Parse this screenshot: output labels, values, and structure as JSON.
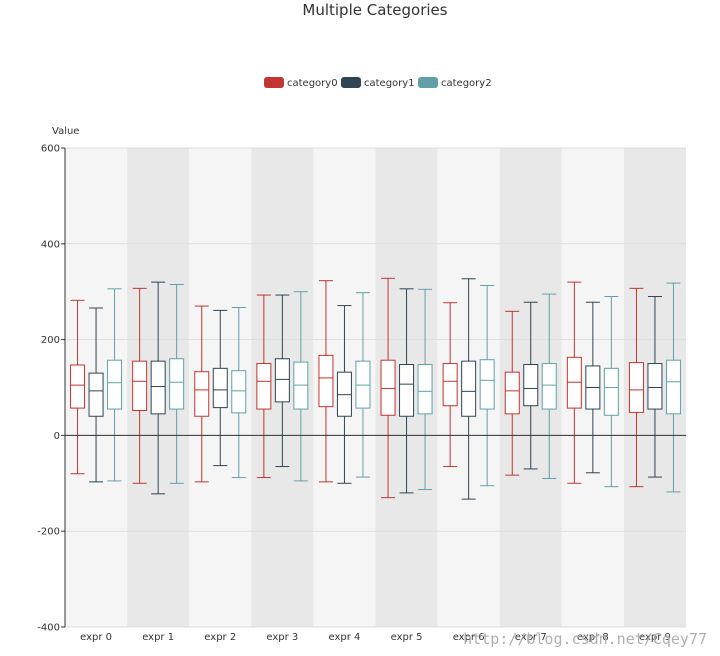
{
  "chart_data": {
    "type": "boxplot",
    "title": "Multiple Categories",
    "ylabel": "Value",
    "xlabel": "",
    "ylim": [
      -400,
      600
    ],
    "yticks": [
      -400,
      -200,
      0,
      200,
      400,
      600
    ],
    "categories": [
      "expr 0",
      "expr 1",
      "expr 2",
      "expr 3",
      "expr 4",
      "expr 5",
      "expr 6",
      "expr 7",
      "expr 8",
      "expr 9"
    ],
    "legend_position": "top-center",
    "grid": true,
    "alternating_band_colors": [
      "#f5f5f5",
      "#e8e8e8"
    ],
    "series": [
      {
        "name": "category0",
        "color": "#c23531",
        "boxes": [
          [
            -80,
            57,
            105,
            147,
            282
          ],
          [
            -100,
            52,
            113,
            155,
            307
          ],
          [
            -97,
            40,
            95,
            133,
            270
          ],
          [
            -88,
            55,
            113,
            150,
            293
          ],
          [
            -97,
            60,
            120,
            167,
            323
          ],
          [
            -130,
            42,
            98,
            157,
            328
          ],
          [
            -65,
            62,
            113,
            150,
            277
          ],
          [
            -83,
            45,
            93,
            132,
            259
          ],
          [
            -100,
            57,
            111,
            163,
            320
          ],
          [
            -107,
            48,
            95,
            152,
            307
          ]
        ]
      },
      {
        "name": "category1",
        "color": "#2f4554",
        "boxes": [
          [
            -97,
            40,
            93,
            130,
            266
          ],
          [
            -122,
            45,
            102,
            155,
            320
          ],
          [
            -63,
            58,
            95,
            140,
            261
          ],
          [
            -65,
            70,
            117,
            160,
            293
          ],
          [
            -100,
            40,
            85,
            132,
            271
          ],
          [
            -120,
            40,
            107,
            148,
            306
          ],
          [
            -133,
            40,
            92,
            155,
            327
          ],
          [
            -70,
            62,
            98,
            148,
            278
          ],
          [
            -78,
            55,
            100,
            145,
            278
          ],
          [
            -87,
            55,
            100,
            150,
            290
          ]
        ]
      },
      {
        "name": "category2",
        "color": "#61a0a8",
        "boxes": [
          [
            -95,
            55,
            110,
            157,
            306
          ],
          [
            -100,
            55,
            111,
            160,
            315
          ],
          [
            -88,
            47,
            93,
            135,
            267
          ],
          [
            -95,
            55,
            105,
            153,
            300
          ],
          [
            -87,
            57,
            105,
            155,
            298
          ],
          [
            -113,
            45,
            92,
            148,
            305
          ],
          [
            -105,
            55,
            115,
            158,
            313
          ],
          [
            -90,
            55,
            105,
            150,
            295
          ],
          [
            -107,
            42,
            100,
            140,
            290
          ],
          [
            -118,
            45,
            112,
            157,
            318
          ]
        ]
      }
    ]
  },
  "watermark": "http://blog.csdn.net/Cqey77"
}
